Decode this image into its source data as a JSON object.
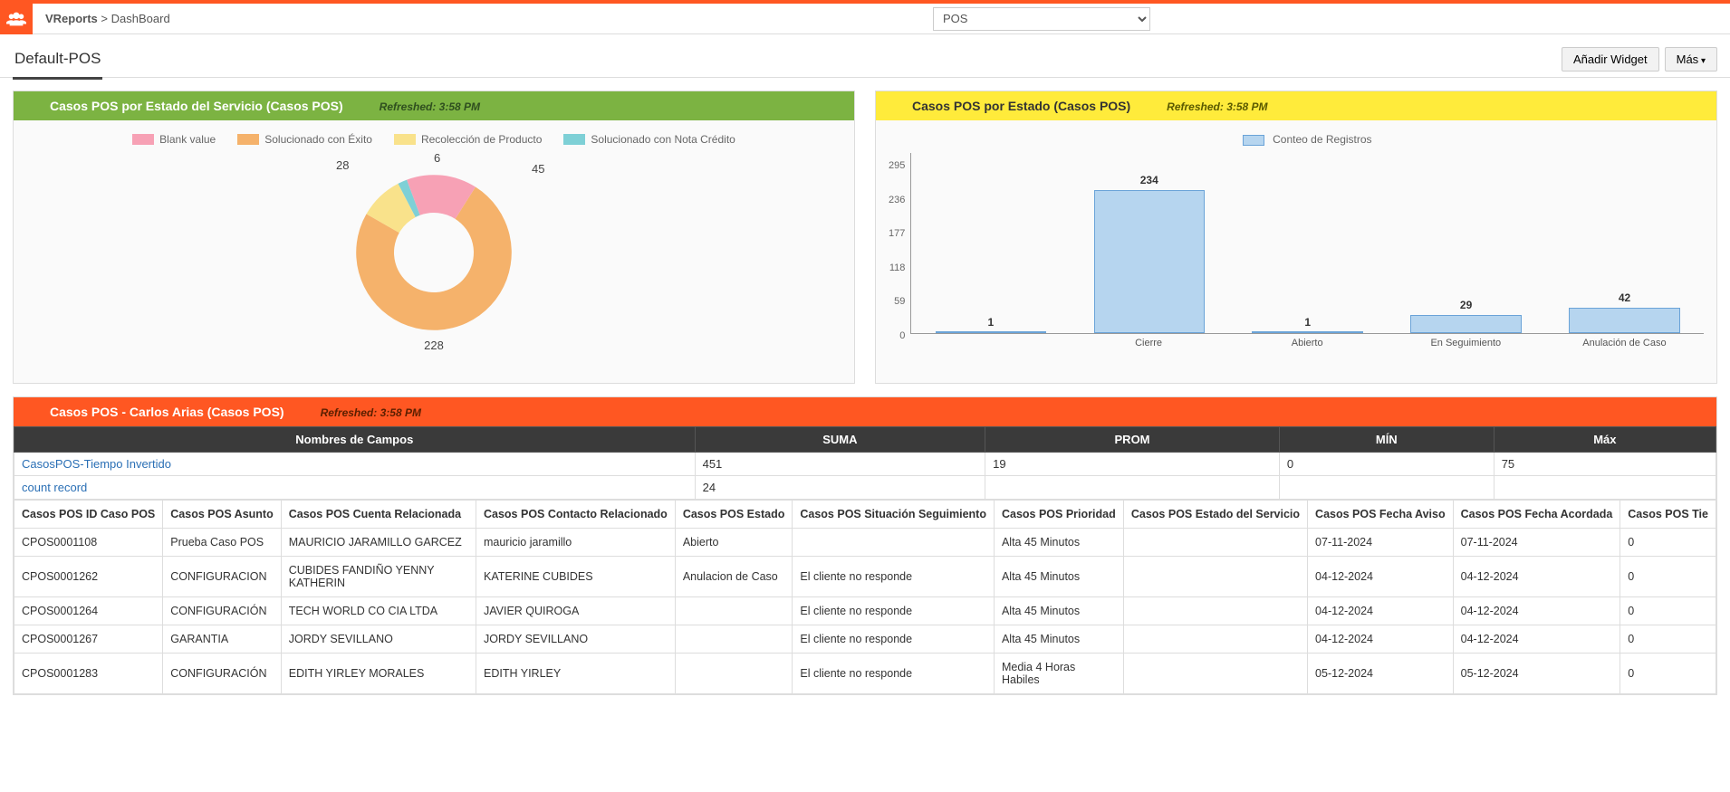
{
  "breadcrumb": {
    "app": "VReports",
    "page": "DashBoard"
  },
  "headerSelect": {
    "value": "POS"
  },
  "tab": "Default-POS",
  "buttons": {
    "addWidget": "Añadir Widget",
    "more": "Más"
  },
  "widgetDonut": {
    "title": "Casos POS por Estado del Servicio (Casos POS)",
    "refreshed": "Refreshed: 3:58 PM",
    "legend": [
      {
        "label": "Blank value",
        "color": "#f7a1b5"
      },
      {
        "label": "Solucionado con Éxito",
        "color": "#f5b26b"
      },
      {
        "label": "Recolección de Producto",
        "color": "#f9e28b"
      },
      {
        "label": "Solucionado con Nota Crédito",
        "color": "#7ed0d6"
      }
    ],
    "slices": [
      {
        "value": 228,
        "color": "#f5b26b"
      },
      {
        "value": 28,
        "color": "#f9e28b"
      },
      {
        "value": 6,
        "color": "#7ed0d6"
      },
      {
        "value": 45,
        "color": "#f7a1b5"
      }
    ],
    "labels": {
      "v228": "228",
      "v28": "28",
      "v6": "6",
      "v45": "45"
    }
  },
  "widgetBar": {
    "title": "Casos POS por Estado (Casos POS)",
    "refreshed": "Refreshed: 3:58 PM",
    "legendLabel": "Conteo de Registros",
    "yTicks": [
      "295",
      "236",
      "177",
      "118",
      "59",
      "0"
    ],
    "yMax": 295,
    "bars": [
      {
        "label": "",
        "value": 1
      },
      {
        "label": "Cierre",
        "value": 234
      },
      {
        "label": "Abierto",
        "value": 1
      },
      {
        "label": "En Seguimiento",
        "value": 29
      },
      {
        "label": "Anulación de Caso",
        "value": 42
      }
    ],
    "barColor": "#b6d5ef",
    "barBorder": "#6aa3d8"
  },
  "widgetTable": {
    "title": "Casos POS - Carlos Arias (Casos POS)",
    "refreshed": "Refreshed: 3:58 PM",
    "summaryHeaders": [
      "Nombres de Campos",
      "SUMA",
      "PROM",
      "MÍN",
      "Máx"
    ],
    "summaryRows": [
      {
        "name": "CasosPOS-Tiempo Invertido",
        "suma": "451",
        "prom": "19",
        "min": "0",
        "max": "75"
      },
      {
        "name": "count record",
        "suma": "24",
        "prom": "",
        "min": "",
        "max": ""
      }
    ],
    "columns": [
      "Casos POS ID Caso POS",
      "Casos POS Asunto",
      "Casos POS Cuenta Relacionada",
      "Casos POS Contacto Relacionado",
      "Casos POS Estado",
      "Casos POS Situación Seguimiento",
      "Casos POS Prioridad",
      "Casos POS Estado del Servicio",
      "Casos POS Fecha Aviso",
      "Casos POS Fecha Acordada",
      "Casos POS Tie"
    ],
    "rows": [
      [
        "CPOS0001108",
        "Prueba Caso POS",
        "MAURICIO JARAMILLO GARCEZ",
        "mauricio jaramillo",
        "Abierto",
        "",
        "Alta 45 Minutos",
        "",
        "07-11-2024",
        "07-11-2024",
        "0"
      ],
      [
        "CPOS0001262",
        "CONFIGURACION",
        "CUBIDES FANDIÑO YENNY KATHERIN",
        "KATERINE CUBIDES",
        "Anulacion de Caso",
        "El cliente no responde",
        "Alta 45 Minutos",
        "",
        "04-12-2024",
        "04-12-2024",
        "0"
      ],
      [
        "CPOS0001264",
        "CONFIGURACIÓN",
        "TECH WORLD CO CIA LTDA",
        "JAVIER QUIROGA",
        "",
        "El cliente no responde",
        "Alta 45 Minutos",
        "",
        "04-12-2024",
        "04-12-2024",
        "0"
      ],
      [
        "CPOS0001267",
        "GARANTIA",
        "JORDY SEVILLANO",
        "JORDY SEVILLANO",
        "",
        "El cliente no responde",
        "Alta 45 Minutos",
        "",
        "04-12-2024",
        "04-12-2024",
        "0"
      ],
      [
        "CPOS0001283",
        "CONFIGURACIÓN",
        "EDITH YIRLEY MORALES",
        "EDITH YIRLEY",
        "",
        "El cliente no responde",
        "Media 4 Horas Habiles",
        "",
        "05-12-2024",
        "05-12-2024",
        "0"
      ]
    ]
  }
}
